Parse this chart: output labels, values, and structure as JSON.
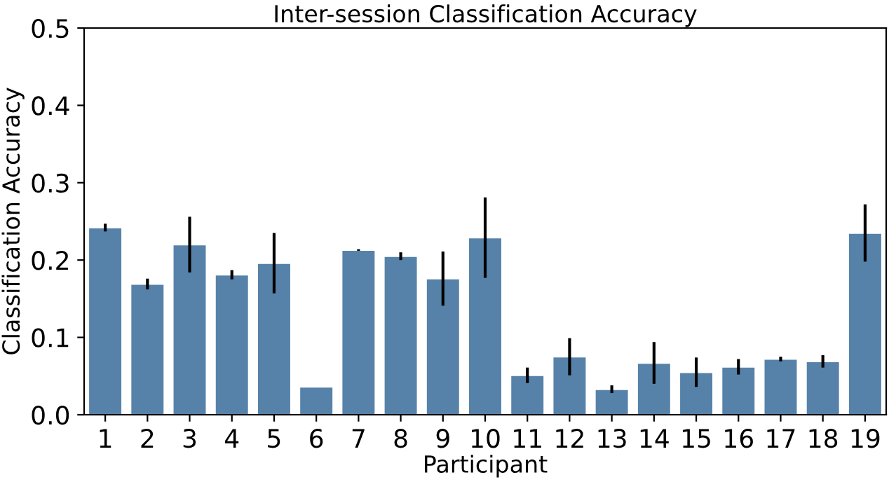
{
  "chart_data": {
    "type": "bar",
    "title": "Inter-session Classification Accuracy",
    "xlabel": "Participant",
    "ylabel": "Classification Accuracy",
    "categories": [
      "1",
      "2",
      "3",
      "4",
      "5",
      "6",
      "7",
      "8",
      "9",
      "10",
      "11",
      "12",
      "13",
      "14",
      "15",
      "16",
      "17",
      "18",
      "19"
    ],
    "values": [
      0.242,
      0.169,
      0.22,
      0.181,
      0.196,
      0.036,
      0.213,
      0.205,
      0.176,
      0.229,
      0.051,
      0.075,
      0.033,
      0.067,
      0.055,
      0.062,
      0.072,
      0.069,
      0.235
    ],
    "errors": [
      0.005,
      0.007,
      0.036,
      0.006,
      0.039,
      null,
      0.001,
      0.005,
      0.035,
      0.052,
      0.01,
      0.024,
      0.005,
      0.027,
      0.019,
      0.01,
      0.003,
      0.008,
      0.037
    ],
    "color": "#5682a9",
    "ylim": [
      0,
      0.5
    ],
    "yticks": [
      {
        "value": 0,
        "label": "0.0"
      },
      {
        "value": 0.1,
        "label": "0.1"
      },
      {
        "value": 0.2,
        "label": "0.2"
      },
      {
        "value": 0.3,
        "label": "0.3"
      },
      {
        "value": 0.4,
        "label": "0.4"
      },
      {
        "value": 0.5,
        "label": "0.5"
      }
    ],
    "grid": false
  }
}
